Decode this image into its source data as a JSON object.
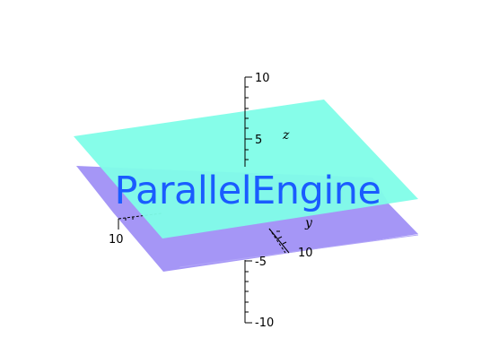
{
  "plot": {
    "z_ticks": [
      "10",
      "5",
      "-5",
      "-10"
    ],
    "x_tick": "10",
    "y_tick": "10",
    "axis_titles": {
      "z": "z",
      "y": "y"
    }
  },
  "planes": [
    {
      "name": "upper-plane",
      "color": "#7ffde8"
    },
    {
      "name": "lower-plane",
      "color": "#9b8bf5"
    }
  ],
  "wordmark": {
    "text": "ParallelEngine",
    "color": "#1a5cff"
  }
}
